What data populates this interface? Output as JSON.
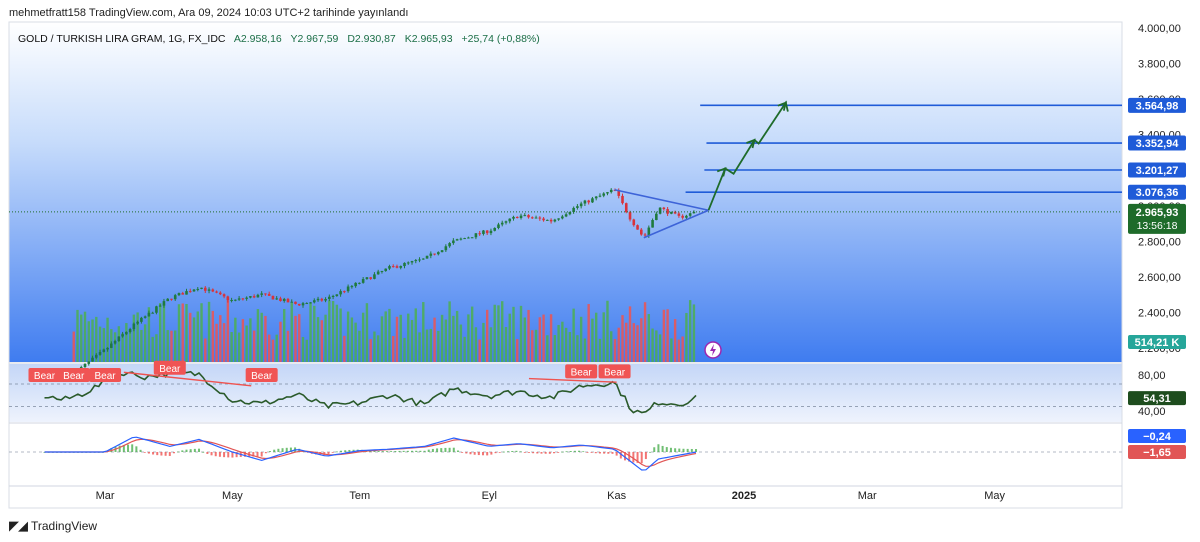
{
  "header": "mehmetfratt158 TradingView.com, Ara 09, 2024 10:03 UTC+2 tarihinde yayınlandı",
  "footer": {
    "logo_icon": "tradingview-logo-icon",
    "text": "TradingView"
  },
  "legend": {
    "symbol": "GOLD / TURKISH LIRA GRAM, 1G, FX_IDC",
    "open": "A2.958,16",
    "high": "Y2.967,59",
    "low": "D2.930,87",
    "close": "K2.965,93",
    "change": "+25,74 (+0,88%)"
  },
  "colors": {
    "up": "#26a69a",
    "down": "#ef5350",
    "candle_up": "#1f7a3e",
    "candle_down": "#d8323a",
    "level": "#1f5bd8",
    "projection": "#1e6b2a",
    "triangle": "#3d63d8",
    "rsi_line": "#2a5a2a",
    "macd": "#2962ff",
    "signal": "#e15555"
  },
  "chart_data": [
    {
      "type": "candlestick",
      "title": "GOLD / TURKISH LIRA GRAM, 1G, FX_IDC",
      "timeframe": "1G",
      "x_tick_labels": [
        "Mar",
        "May",
        "Tem",
        "Eyl",
        "Kas",
        "2025",
        "Mar",
        "May"
      ],
      "y_tick_labels": [
        "4.000,00",
        "3.800,00",
        "3.600,00",
        "3.400,00",
        "3.200,00",
        "3.000,00",
        "2.800,00",
        "2.600,00",
        "2.400,00",
        "2.200,00"
      ],
      "ylim": [
        2200,
        4000
      ],
      "last_price": 2965.93,
      "last_price_label": "2.965,93",
      "countdown": "13:56:18",
      "price_path": [
        [
          "2024-02-15",
          2055
        ],
        [
          "2024-03-01",
          2190
        ],
        [
          "2024-03-15",
          2330
        ],
        [
          "2024-04-01",
          2480
        ],
        [
          "2024-04-15",
          2545
        ],
        [
          "2024-05-01",
          2465
        ],
        [
          "2024-05-15",
          2500
        ],
        [
          "2024-06-01",
          2445
        ],
        [
          "2024-06-15",
          2475
        ],
        [
          "2024-07-01",
          2570
        ],
        [
          "2024-07-15",
          2650
        ],
        [
          "2024-08-01",
          2700
        ],
        [
          "2024-08-15",
          2800
        ],
        [
          "2024-09-01",
          2860
        ],
        [
          "2024-09-15",
          2945
        ],
        [
          "2024-10-01",
          2915
        ],
        [
          "2024-10-15",
          3010
        ],
        [
          "2024-10-31",
          3090
        ],
        [
          "2024-11-08",
          2920
        ],
        [
          "2024-11-14",
          2820
        ],
        [
          "2024-11-21",
          2990
        ],
        [
          "2024-12-01",
          2935
        ],
        [
          "2024-12-09",
          2966
        ]
      ],
      "levels": [
        {
          "value": 3564.98,
          "label": "3.564,98"
        },
        {
          "value": 3352.94,
          "label": "3.352,94"
        },
        {
          "value": 3201.27,
          "label": "3.201,27"
        },
        {
          "value": 3076.36,
          "label": "3.076,36"
        }
      ],
      "triangle": {
        "upper": [
          [
            "2024-10-31",
            3090
          ],
          [
            "2024-12-15",
            2975
          ]
        ],
        "lower": [
          [
            "2024-11-14",
            2820
          ],
          [
            "2024-12-15",
            2975
          ]
        ]
      },
      "projection": [
        [
          "2024-12-15",
          2975
        ],
        [
          "2024-12-23",
          3210
        ],
        [
          "2024-12-27",
          3180
        ],
        [
          "2025-01-06",
          3370
        ],
        [
          "2025-01-08",
          3350
        ],
        [
          "2025-01-21",
          3580
        ],
        [
          "2025-01-22",
          3530
        ]
      ]
    },
    {
      "type": "bar",
      "title": "Volume",
      "last_value": 514210,
      "last_value_label": "514,21 K",
      "tick_labels": []
    },
    {
      "type": "line",
      "title": "RSI",
      "y_tick_labels": [
        "80,00",
        "40,00"
      ],
      "ylim": [
        30,
        90
      ],
      "last_value": 54.31,
      "last_value_label": "54,31",
      "points": [
        [
          "2024-02-01",
          57
        ],
        [
          "2024-02-10",
          52
        ],
        [
          "2024-02-20",
          60
        ],
        [
          "2024-03-01",
          72
        ],
        [
          "2024-03-10",
          83
        ],
        [
          "2024-03-20",
          78
        ],
        [
          "2024-04-01",
          82
        ],
        [
          "2024-04-15",
          81
        ],
        [
          "2024-05-01",
          52
        ],
        [
          "2024-05-15",
          48
        ],
        [
          "2024-06-01",
          58
        ],
        [
          "2024-06-15",
          45
        ],
        [
          "2024-07-01",
          49
        ],
        [
          "2024-07-15",
          58
        ],
        [
          "2024-08-01",
          47
        ],
        [
          "2024-08-15",
          65
        ],
        [
          "2024-09-01",
          57
        ],
        [
          "2024-09-15",
          62
        ],
        [
          "2024-10-01",
          55
        ],
        [
          "2024-10-15",
          68
        ],
        [
          "2024-10-31",
          72
        ],
        [
          "2024-11-08",
          42
        ],
        [
          "2024-11-14",
          36
        ],
        [
          "2024-11-21",
          50
        ],
        [
          "2024-12-01",
          48
        ],
        [
          "2024-12-09",
          54
        ]
      ],
      "divergences": [
        {
          "from": [
            "2024-03-10",
            83
          ],
          "to": [
            "2024-05-10",
            68
          ]
        },
        {
          "from": [
            "2024-09-20",
            76
          ],
          "to": [
            "2024-11-01",
            72
          ]
        }
      ],
      "annotations": [
        {
          "label": "Bear",
          "at": "2024-02-01",
          "value": 80
        },
        {
          "label": "Bear",
          "at": "2024-02-15",
          "value": 80
        },
        {
          "label": "Bear",
          "at": "2024-03-01",
          "value": 80
        },
        {
          "label": "Bear",
          "at": "2024-04-01",
          "value": 88
        },
        {
          "label": "Bear",
          "at": "2024-05-15",
          "value": 80
        },
        {
          "label": "Bear",
          "at": "2024-10-15",
          "value": 84
        },
        {
          "label": "Bear",
          "at": "2024-10-31",
          "value": 84
        }
      ]
    },
    {
      "type": "line",
      "title": "MACD",
      "series_last": [
        {
          "value": -0.24,
          "label": "−0,24",
          "color": "#2962ff"
        },
        {
          "value": -1.65,
          "label": "−1,65",
          "color": "#e15555"
        }
      ],
      "macd": [
        [
          "2024-02-01",
          0
        ],
        [
          "2024-03-01",
          0
        ],
        [
          "2024-03-15",
          55
        ],
        [
          "2024-04-01",
          20
        ],
        [
          "2024-04-15",
          45
        ],
        [
          "2024-05-01",
          0
        ],
        [
          "2024-05-15",
          -30
        ],
        [
          "2024-06-01",
          10
        ],
        [
          "2024-06-15",
          -15
        ],
        [
          "2024-07-01",
          5
        ],
        [
          "2024-07-15",
          10
        ],
        [
          "2024-08-01",
          20
        ],
        [
          "2024-08-15",
          50
        ],
        [
          "2024-09-01",
          20
        ],
        [
          "2024-09-15",
          30
        ],
        [
          "2024-10-01",
          15
        ],
        [
          "2024-10-15",
          25
        ],
        [
          "2024-10-31",
          10
        ],
        [
          "2024-11-14",
          -70
        ],
        [
          "2024-11-21",
          -25
        ],
        [
          "2024-12-09",
          -0.24
        ]
      ]
    }
  ]
}
